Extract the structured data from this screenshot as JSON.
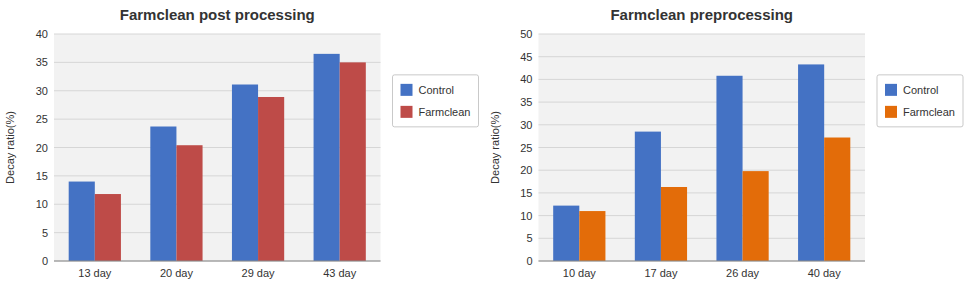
{
  "chart_data": [
    {
      "type": "bar",
      "title": "Farmclean post processing",
      "categories": [
        "13 day",
        "20 day",
        "29 day",
        "43 day"
      ],
      "series": [
        {
          "name": "Control",
          "color": "#4472C4",
          "values": [
            14.0,
            23.7,
            31.1,
            36.5
          ]
        },
        {
          "name": "Farmclean",
          "color": "#BE4B48",
          "values": [
            11.8,
            20.4,
            28.9,
            35.0
          ]
        }
      ],
      "ylabel": "Decay ratio(%)",
      "ylim": [
        0,
        40
      ],
      "yticks": [
        0,
        5,
        10,
        15,
        20,
        25,
        30,
        35,
        40
      ],
      "grid": true,
      "legend": "right"
    },
    {
      "type": "bar",
      "title": "Farmclean preprocessing",
      "categories": [
        "10 day",
        "17 day",
        "26 day",
        "40 day"
      ],
      "series": [
        {
          "name": "Control",
          "color": "#4472C4",
          "values": [
            12.2,
            28.5,
            40.8,
            43.3
          ]
        },
        {
          "name": "Farmclean",
          "color": "#E36C09",
          "values": [
            11.0,
            16.3,
            19.8,
            27.2
          ]
        }
      ],
      "ylabel": "Decay ratio(%)",
      "ylim": [
        0,
        50
      ],
      "yticks": [
        0,
        5,
        10,
        15,
        20,
        25,
        30,
        35,
        40,
        45,
        50
      ],
      "grid": true,
      "legend": "right"
    }
  ]
}
